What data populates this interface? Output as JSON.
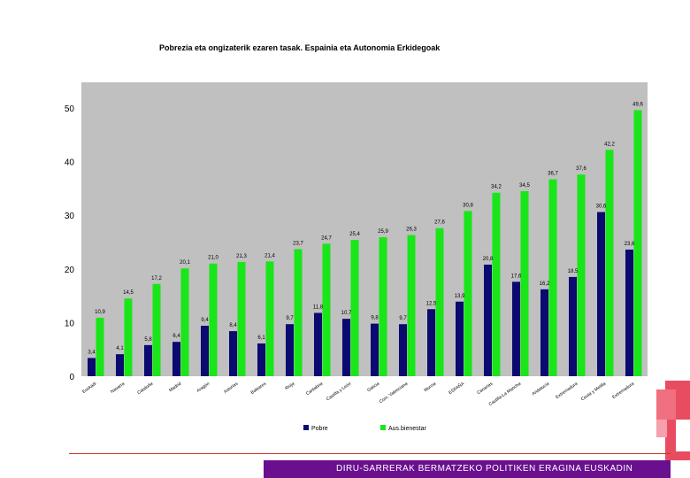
{
  "footer": {
    "text": "DIRU-SARRERAK BERMATZEKO POLITIKEN ERAGINA EUSKADIN"
  },
  "colors": {
    "pobre": "#0a0a70",
    "ausbienestar": "#19e619",
    "plot_bg": "#c0c0c0",
    "footer": "#6a0f8e",
    "accent": "#e53950"
  },
  "chart_data": {
    "type": "bar",
    "title": "Pobrezia eta ongizaterik ezaren tasak. Espainia eta Autonomia Erkidegoak",
    "xlabel": "",
    "ylabel": "",
    "ylim": [
      0,
      55
    ],
    "yticks": [
      0,
      10,
      20,
      30,
      40,
      50
    ],
    "grid": false,
    "legend_position": "bottom",
    "categories": [
      "Euskadi",
      "Navarra",
      "Cataluña",
      "Madrid",
      "Aragón",
      "Asturias",
      "Baleares",
      "Rioja",
      "Cantabria",
      "Castilla y León",
      "Galicia",
      "Com. Valenciana",
      "Murcia",
      "ESPAÑA",
      "Canarias",
      "Castilla-La Mancha",
      "Andalucía",
      "Extremadura",
      "Ceuta y Melilla",
      "Extremadura"
    ],
    "series": [
      {
        "name": "Pobre",
        "values": [
          3.4,
          4.1,
          5.8,
          6.4,
          9.4,
          8.4,
          6.1,
          9.7,
          11.8,
          10.7,
          9.8,
          9.7,
          12.5,
          13.9,
          20.8,
          17.6,
          16.2,
          18.5,
          30.6,
          23.6
        ]
      },
      {
        "name": "Aus.bienestar",
        "values": [
          10.9,
          14.5,
          17.2,
          20.1,
          21.0,
          21.3,
          21.4,
          23.7,
          24.7,
          25.4,
          25.9,
          26.3,
          27.6,
          30.8,
          34.2,
          34.5,
          36.7,
          37.6,
          42.2,
          49.6
        ]
      }
    ],
    "bar_labels": {
      "pobre": [
        "3,4",
        "4,1",
        "5,8",
        "6,4",
        "9,4",
        "8,4",
        "6,1",
        "9,7",
        "11,8",
        "10,7",
        "9,8",
        "9,7",
        "12,5",
        "13,9",
        "20,8",
        "17,6",
        "16,2",
        "18,5",
        "30,6",
        "23,6"
      ],
      "ausbienestar": [
        "10,9",
        "14,5",
        "17,2",
        "20,1",
        "21,0",
        "21,3",
        "21,4",
        "23,7",
        "24,7",
        "25,4",
        "25,9",
        "26,3",
        "27,6",
        "30,8",
        "34,2",
        "34,5",
        "36,7",
        "37,6",
        "42,2",
        "49,6"
      ]
    }
  }
}
